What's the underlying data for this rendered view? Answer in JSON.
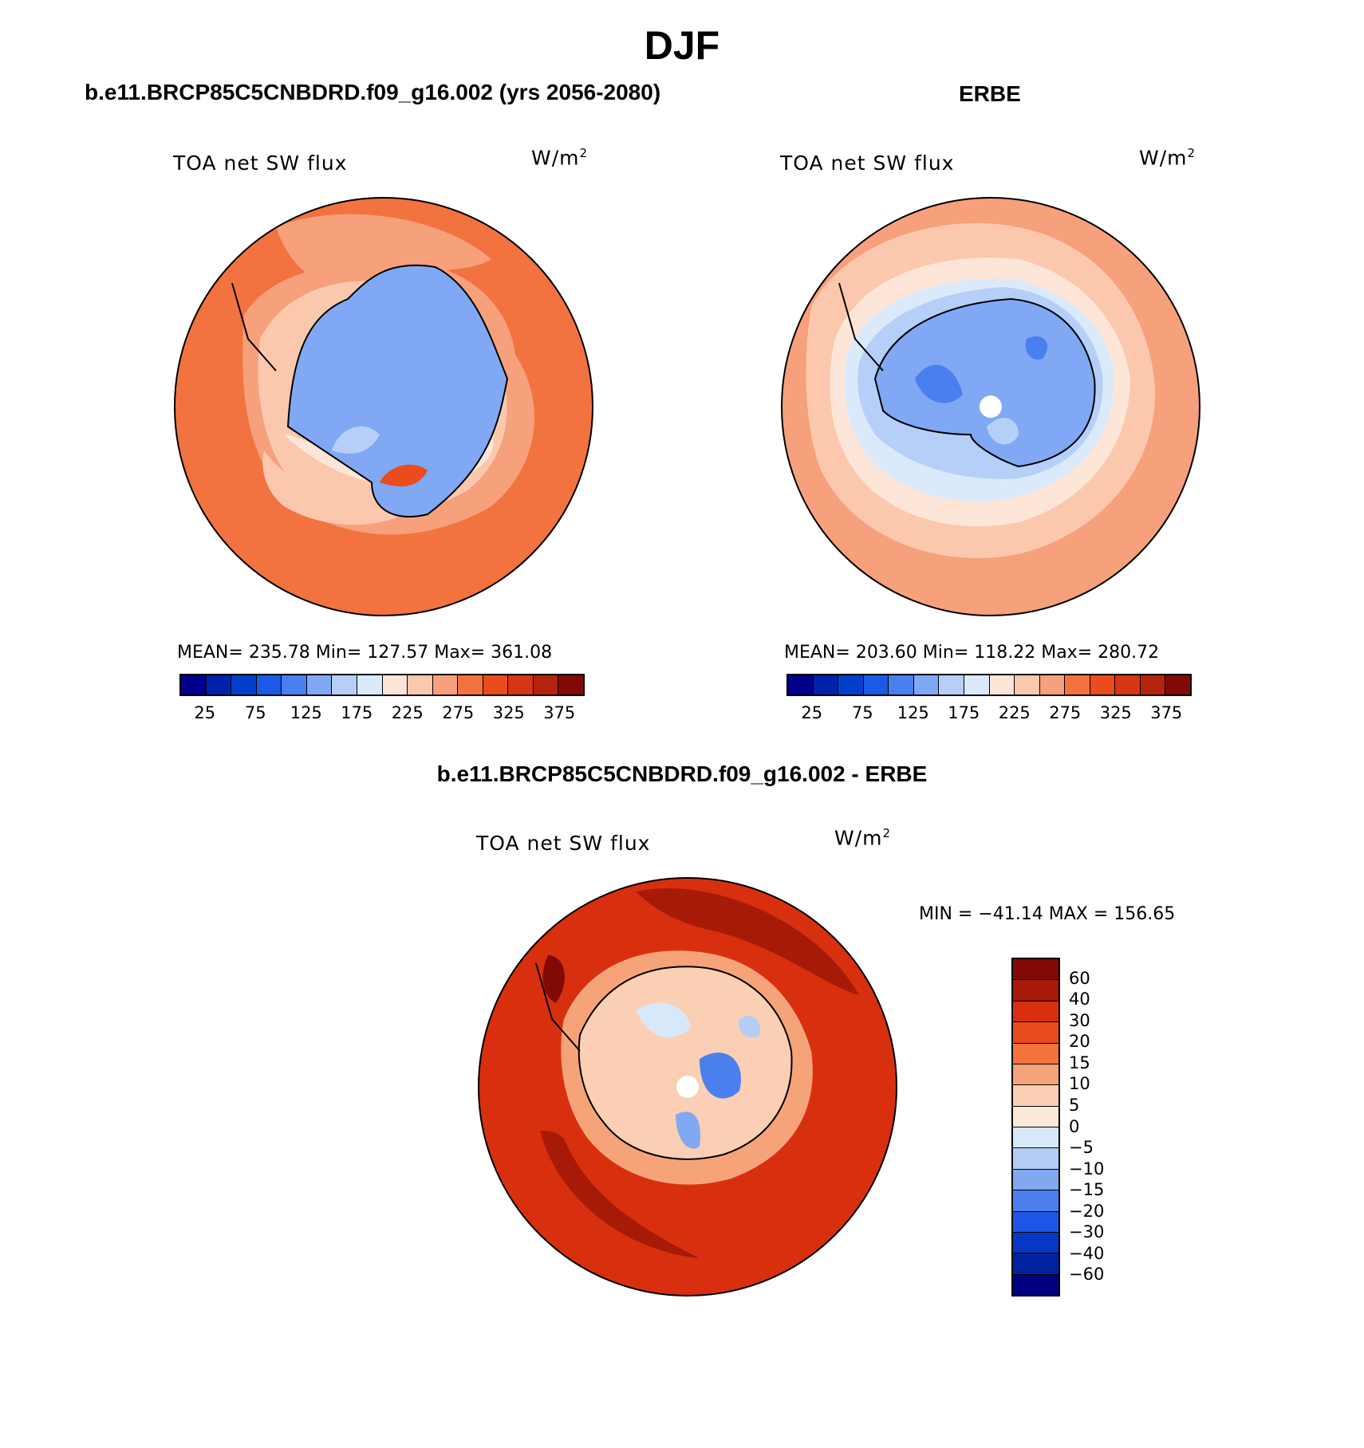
{
  "main_title": "DJF",
  "colors": {
    "abs_scale": [
      "#00008c",
      "#0022aa",
      "#0040cc",
      "#1a5ae6",
      "#4a7fef",
      "#80a8f4",
      "#b6cff8",
      "#daeafb",
      "#fde6d8",
      "#fbc8ae",
      "#f6a07c",
      "#f27340",
      "#ea4c1c",
      "#d83512",
      "#b4240c",
      "#820a06"
    ],
    "diff_scale": [
      "#820a06",
      "#a81a08",
      "#d8300e",
      "#e84c1c",
      "#f2733c",
      "#f7a37a",
      "#fbcfb4",
      "#fde9dc",
      "#d8e8fb",
      "#b4cdf6",
      "#82a8f1",
      "#4c7fee",
      "#1c56e6",
      "#0738c4",
      "#00229e",
      "#000080"
    ]
  },
  "panels": {
    "model": {
      "title": "b.e11.BRCP85C5CNBDRD.f09_g16.002 (yrs 2056-2080)",
      "variable": "TOA net SW flux",
      "units": "W/m",
      "units_sup": "2",
      "stats": "MEAN= 235.78   Min= 127.57   Max= 361.08",
      "colorbar_labels": [
        "25",
        "75",
        "125",
        "175",
        "225",
        "275",
        "325",
        "375"
      ]
    },
    "obs": {
      "title": "ERBE",
      "variable": "TOA net SW flux",
      "units": "W/m",
      "units_sup": "2",
      "stats": "MEAN= 203.60   Min= 118.22   Max= 280.72",
      "colorbar_labels": [
        "25",
        "75",
        "125",
        "175",
        "225",
        "275",
        "325",
        "375"
      ]
    },
    "diff": {
      "title": "b.e11.BRCP85C5CNBDRD.f09_g16.002 - ERBE",
      "variable": "TOA net SW flux",
      "units": "W/m",
      "units_sup": "2",
      "stats": "MIN = −41.14 MAX = 156.65",
      "colorbar_labels": [
        "60",
        "40",
        "30",
        "20",
        "15",
        "10",
        "5",
        "0",
        "−5",
        "−10",
        "−15",
        "−20",
        "−30",
        "−40",
        "−60"
      ]
    }
  }
}
